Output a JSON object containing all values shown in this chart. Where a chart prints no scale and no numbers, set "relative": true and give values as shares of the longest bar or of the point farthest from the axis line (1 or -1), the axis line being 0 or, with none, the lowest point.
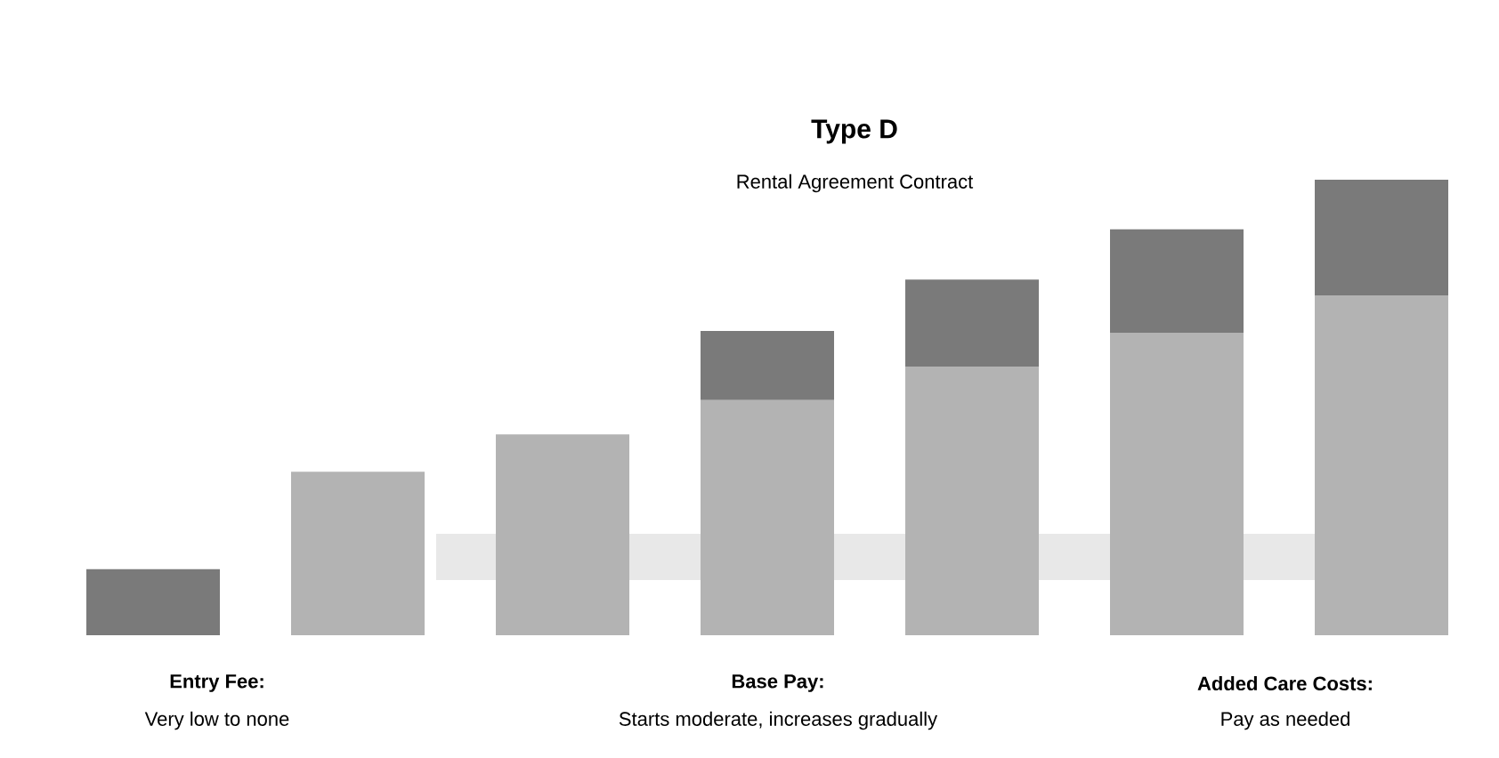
{
  "chart_data": {
    "type": "bar",
    "title": "Type D",
    "subtitle": "Rental Agreement Contract",
    "categories": [
      null,
      null,
      null,
      null,
      null,
      null,
      null
    ],
    "stacked": true,
    "relative": true,
    "series": [
      {
        "color": "#b3b3b3",
        "values": [
          0,
          0.359,
          0.441,
          0.516,
          0.59,
          0.664,
          0.746
        ]
      },
      {
        "color": "#7a7a7a",
        "values": [
          0.145,
          0,
          0,
          0.152,
          0.191,
          0.227,
          0.254
        ]
      }
    ],
    "annotations": [
      "Entry Fee:",
      "Very low to none",
      "Base Pay:",
      "Starts moderate, increases gradually",
      "Added Care Costs:",
      "Pay as needed"
    ]
  }
}
